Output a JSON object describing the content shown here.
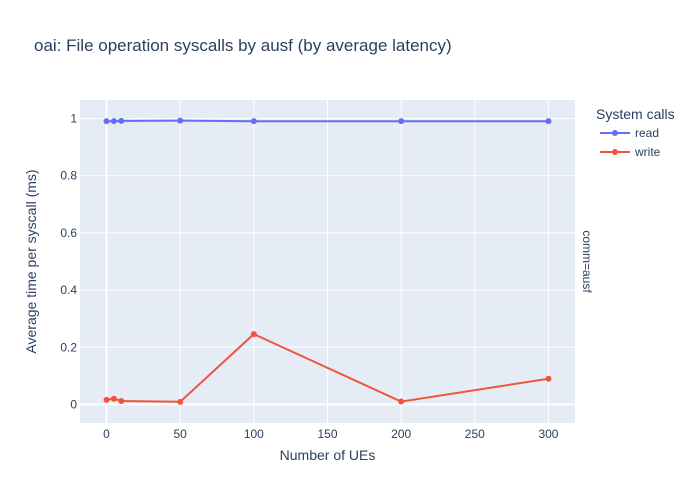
{
  "chart_data": {
    "type": "line",
    "title": "oai: File operation syscalls by ausf (by average latency)",
    "xlabel": "Number of UEs",
    "ylabel": "Average time per syscall (ms)",
    "facet_label": "comm=ausf",
    "legend_title": "System calls",
    "legend_position": "top-right",
    "grid": true,
    "xlim": [
      -18,
      318
    ],
    "ylim": [
      -0.065,
      1.065
    ],
    "x_ticks": [
      0,
      50,
      100,
      150,
      200,
      250,
      300
    ],
    "y_ticks": [
      0,
      0.2,
      0.4,
      0.6,
      0.8,
      1
    ],
    "y_tick_labels": [
      "0",
      "0.2",
      "0.4",
      "0.6",
      "0.8",
      "1"
    ],
    "colors": {
      "plot_bg": "#E5ECF6",
      "grid": "#ffffff",
      "text": "#2a3f5f"
    },
    "series": [
      {
        "name": "read",
        "color": "#636EFA",
        "x": [
          0,
          5,
          10,
          50,
          100,
          200,
          300
        ],
        "y": [
          0.991,
          0.991,
          0.992,
          0.993,
          0.991,
          0.991,
          0.991
        ]
      },
      {
        "name": "write",
        "color": "#EF553B",
        "x": [
          0,
          5,
          10,
          50,
          100,
          200,
          300
        ],
        "y": [
          0.016,
          0.02,
          0.012,
          0.009,
          0.246,
          0.01,
          0.09
        ]
      }
    ]
  }
}
